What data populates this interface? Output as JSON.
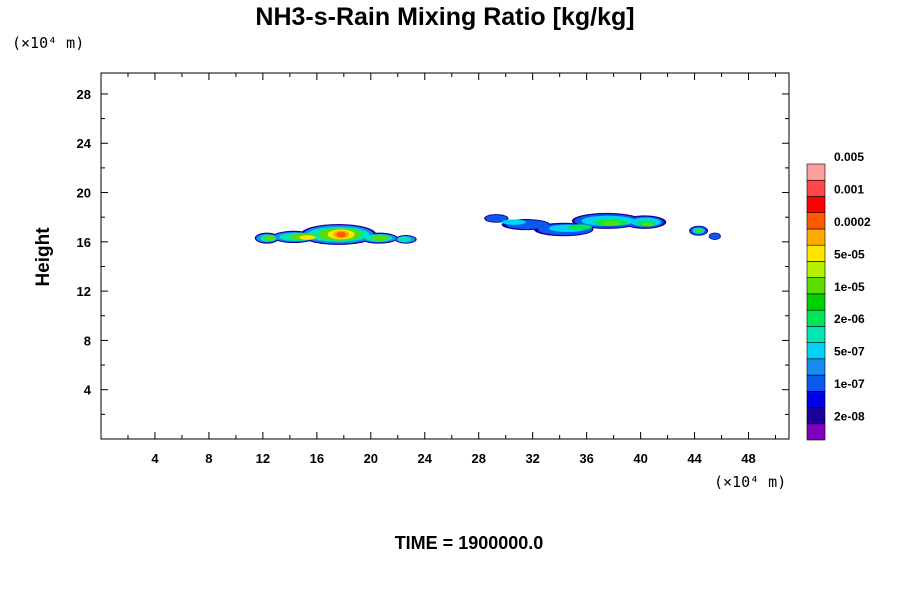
{
  "title": "NH3-s-Rain Mixing Ratio [kg/kg]",
  "time_label": "TIME = 1900000.0",
  "colors": {
    "levels": [
      "#7f00bf",
      "#1a0096",
      "#0000e6",
      "#0a5af0",
      "#168cf0",
      "#00d2f5",
      "#00e6b4",
      "#00e65a",
      "#00d200",
      "#5adc00",
      "#b4f000",
      "#ffe600",
      "#ffaa00",
      "#ff5a00",
      "#ff0000",
      "#ff4646",
      "#ffa0a0"
    ]
  },
  "chart_data": {
    "type": "heatmap",
    "title": "NH3-s-Rain Mixing Ratio [kg/kg]",
    "xlabel": "",
    "ylabel": "Height",
    "x_unit": "(×10⁴ m)",
    "y_unit": "(×10⁴ m)",
    "xlim": [
      0,
      51
    ],
    "ylim": [
      0,
      29.7
    ],
    "xticks": [
      4,
      8,
      12,
      16,
      20,
      24,
      28,
      32,
      36,
      40,
      44,
      48
    ],
    "yticks": [
      4,
      8,
      12,
      16,
      20,
      24,
      28
    ],
    "colorbar_labels": [
      "2e-08",
      "1e-07",
      "5e-07",
      "2e-06",
      "1e-05",
      "5e-05",
      "0.0002",
      "0.001",
      "0.005"
    ],
    "features": [
      {
        "x": [
          11.5,
          23.5
        ],
        "y": [
          15.7,
          17.6
        ],
        "peak_x": 17.8,
        "peak_y": 16.6,
        "peak_value": "≈1e-04"
      },
      {
        "x": [
          28.2,
          46.0
        ],
        "y": [
          15.8,
          18.3
        ],
        "peak_x": 36.5,
        "peak_y": 17.3,
        "peak_value": "≈2e-05"
      }
    ],
    "grid": false
  }
}
